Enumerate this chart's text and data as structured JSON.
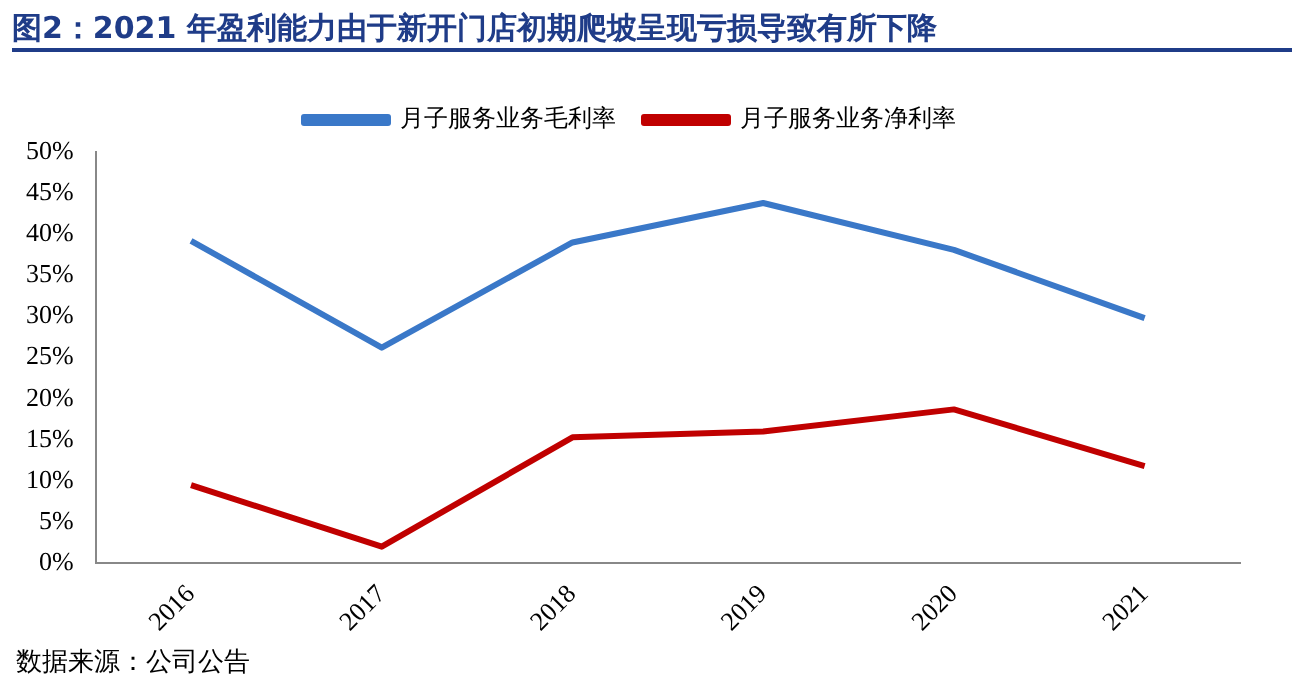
{
  "chart_data": {
    "type": "line",
    "title": "图2：2021 年盈利能力由于新开门店初期爬坡呈现亏损导致有所下降",
    "annotations": [
      "数据来源：公司公告"
    ],
    "categories": [
      "2016",
      "2017",
      "2018",
      "2019",
      "2020",
      "2021"
    ],
    "series": [
      {
        "name": "月子服务业务毛利率",
        "color": "#3a78c8",
        "values": [
          39.2,
          26.2,
          39.0,
          43.8,
          38.1,
          29.8
        ]
      },
      {
        "name": "月子服务业务净利率",
        "color": "#c00000",
        "values": [
          9.5,
          2.0,
          15.3,
          16.0,
          18.7,
          11.8
        ]
      }
    ],
    "ylim": [
      0,
      50
    ],
    "yticks": [
      {
        "value": 0,
        "label": "0%"
      },
      {
        "value": 5,
        "label": "5%"
      },
      {
        "value": 10,
        "label": "10%"
      },
      {
        "value": 15,
        "label": "15%"
      },
      {
        "value": 20,
        "label": "20%"
      },
      {
        "value": 25,
        "label": "25%"
      },
      {
        "value": 30,
        "label": "30%"
      },
      {
        "value": 35,
        "label": "35%"
      },
      {
        "value": 40,
        "label": "40%"
      },
      {
        "value": 45,
        "label": "45%"
      },
      {
        "value": 50,
        "label": "50%"
      }
    ],
    "grid": false,
    "legend": "top",
    "marker": "none",
    "line_style": "solid"
  }
}
